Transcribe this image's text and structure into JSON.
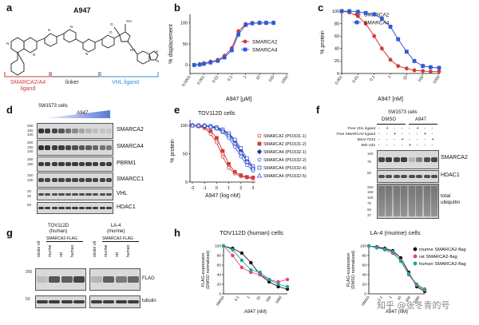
{
  "panel_a": {
    "label": "a",
    "compound": "A947",
    "left_ligand": "SMARCA2/A4\nligand",
    "linker": "linker",
    "vhl_ligand": "VHL ligand",
    "colors": {
      "left": "#d23a3a",
      "vhl": "#2f8fd6"
    }
  },
  "panel_b": {
    "label": "b"
  },
  "panel_c": {
    "label": "c"
  },
  "panel_d": {
    "label": "d",
    "cells": "SW1573 cells",
    "compound": "A947",
    "rows": [
      "SMARCA2",
      "SMARCA4",
      "PBRM1",
      "SMARCC1",
      "VHL",
      "HDAC1"
    ],
    "mw": [
      [
        "250",
        "150",
        "100"
      ],
      [
        "250",
        "150",
        "100"
      ],
      [
        "250",
        "150"
      ],
      [
        "150",
        "100"
      ],
      [
        "25",
        "20"
      ],
      [
        "50"
      ]
    ]
  },
  "panel_e": {
    "label": "e",
    "title": "TOV112D cells"
  },
  "panel_f": {
    "label": "f",
    "cells": "SW1573 cells",
    "groups": [
      "DMSO",
      "A947"
    ],
    "treatments": [
      "Free VHL ligand",
      "Free SMARCA2 ligand",
      "MLN-7243",
      "MG-132"
    ],
    "signs": [
      [
        "-",
        "+",
        "-",
        "-",
        "-",
        "+",
        "-",
        "-"
      ],
      [
        "-",
        "-",
        "+",
        "-",
        "-",
        "-",
        "+",
        "-"
      ],
      [
        "-",
        "-",
        "-",
        "+",
        "-",
        "-",
        "-",
        "+"
      ],
      [
        "-",
        "-",
        "-",
        "-",
        "+",
        "-",
        "-",
        "-"
      ]
    ],
    "rows": [
      "SMARCA2",
      "HDAC1",
      "total\nubiquitin"
    ],
    "mw": [
      "150",
      "75",
      "50",
      "250",
      "150",
      "100",
      "75",
      "50",
      "37"
    ]
  },
  "panel_g": {
    "label": "g",
    "left_title": "TOV112D\n(human)",
    "right_title": "LA-4\n(murine)",
    "construct": "SMARCA2-FLAG",
    "lanes": [
      "vector ctl",
      "murine",
      "rat",
      "human"
    ],
    "rows": [
      "FLAG",
      "tubulin"
    ],
    "mw": [
      "250",
      "50"
    ]
  },
  "panel_h": {
    "label": "h"
  },
  "watermark": "知乎 @张冬青的号",
  "chart_data": [
    {
      "id": "b",
      "type": "line",
      "xlabel": "A947 [µM]",
      "ylabel": "% displacement",
      "x_ticks": [
        "0.0001",
        "0.001",
        "0.01",
        "0.1",
        "1",
        "10",
        "100",
        "1000"
      ],
      "x_log_range": [
        -4,
        3
      ],
      "ylim": [
        -20,
        120
      ],
      "y_ticks": [
        0,
        50,
        100
      ],
      "legend_position": "right",
      "series": [
        {
          "name": "SMARCA2",
          "color": "#d23a3a",
          "marker": "circle",
          "x": [
            0.0002,
            0.0005,
            0.001,
            0.003,
            0.01,
            0.03,
            0.1,
            0.3,
            1,
            3,
            10,
            30,
            100
          ],
          "y": [
            0,
            2,
            4,
            8,
            12,
            22,
            40,
            80,
            97,
            99,
            100,
            100,
            100
          ]
        },
        {
          "name": "SMARCA4",
          "color": "#2f5bd6",
          "marker": "square",
          "x": [
            0.0002,
            0.0005,
            0.001,
            0.003,
            0.01,
            0.03,
            0.1,
            0.3,
            1,
            3,
            10,
            30,
            100
          ],
          "y": [
            0,
            1,
            3,
            6,
            10,
            18,
            35,
            72,
            95,
            99,
            100,
            100,
            100
          ]
        }
      ]
    },
    {
      "id": "c",
      "type": "line",
      "xlabel": "A947 [nM]",
      "ylabel": "% protein",
      "x_ticks": [
        "0.001",
        "0.01",
        "0.1",
        "1",
        "10",
        "100",
        "1000"
      ],
      "x_log_range": [
        -3,
        3
      ],
      "ylim": [
        0,
        100
      ],
      "y_ticks": [
        0,
        20,
        40,
        60,
        80,
        100
      ],
      "legend_position": "top-right",
      "series": [
        {
          "name": "SMARCA2",
          "color": "#d23a3a",
          "marker": "circle",
          "x": [
            0.001,
            0.003,
            0.01,
            0.03,
            0.1,
            0.3,
            1,
            3,
            10,
            30,
            100,
            300,
            1000
          ],
          "y": [
            100,
            98,
            92,
            80,
            60,
            40,
            22,
            12,
            8,
            5,
            4,
            3,
            3
          ]
        },
        {
          "name": "SMARCA4",
          "color": "#2f5bd6",
          "marker": "square",
          "x": [
            0.001,
            0.003,
            0.01,
            0.03,
            0.1,
            0.3,
            1,
            3,
            10,
            30,
            100,
            300,
            1000
          ],
          "y": [
            100,
            100,
            99,
            97,
            95,
            88,
            75,
            55,
            35,
            20,
            12,
            10,
            9
          ]
        }
      ]
    },
    {
      "id": "e",
      "type": "line",
      "title": "TOV112D cells",
      "xlabel": "A947 (log nM)",
      "ylabel": "% protein",
      "x_ticks": [
        "-2",
        "-1",
        "0",
        "1",
        "2",
        "3"
      ],
      "xlim": [
        -2.2,
        3.2
      ],
      "ylim": [
        0,
        110
      ],
      "y_ticks": [
        0,
        50,
        100
      ],
      "legend_position": "right",
      "series": [
        {
          "name": "SMARCA2 (P51531-1)",
          "color": "#d23a3a",
          "marker": "circle-open",
          "x": [
            -2,
            -1.5,
            -1,
            -0.5,
            0,
            0.5,
            1,
            1.5,
            2,
            2.5,
            3
          ],
          "y": [
            100,
            98,
            95,
            85,
            70,
            45,
            25,
            15,
            10,
            8,
            6
          ]
        },
        {
          "name": "SMARCA2 (P51531-2)",
          "color": "#d23a3a",
          "marker": "square",
          "x": [
            -2,
            -1.5,
            -1,
            -0.5,
            0,
            0.5,
            1,
            1.5,
            2,
            2.5,
            3
          ],
          "y": [
            100,
            99,
            97,
            90,
            78,
            55,
            32,
            18,
            12,
            9,
            8
          ]
        },
        {
          "name": "SMARCA4 (P51532-1)",
          "color": "#1f2fa8",
          "marker": "diamond",
          "x": [
            -2,
            -1.5,
            -1,
            -0.5,
            0,
            0.5,
            1,
            1.5,
            2,
            2.5,
            3
          ],
          "y": [
            100,
            100,
            99,
            98,
            96,
            92,
            85,
            72,
            55,
            38,
            25
          ]
        },
        {
          "name": "SMARCA4 (P51532-2)",
          "color": "#3b5bd6",
          "marker": "circle-open",
          "x": [
            -2,
            -1.5,
            -1,
            -0.5,
            0,
            0.5,
            1,
            1.5,
            2,
            2.5,
            3
          ],
          "y": [
            100,
            100,
            99,
            97,
            94,
            88,
            78,
            62,
            45,
            30,
            20
          ]
        },
        {
          "name": "SMARCA4 (P51532-4)",
          "color": "#3b5bd6",
          "marker": "square-open",
          "x": [
            -2,
            -1.5,
            -1,
            -0.5,
            0,
            0.5,
            1,
            1.5,
            2,
            2.5,
            3
          ],
          "y": [
            100,
            100,
            100,
            99,
            97,
            93,
            86,
            75,
            60,
            42,
            28
          ]
        },
        {
          "name": "SMARCA4 (P51532-5)",
          "color": "#3b5bd6",
          "marker": "triangle-open",
          "x": [
            -2,
            -1.5,
            -1,
            -0.5,
            0,
            0.5,
            1,
            1.5,
            2,
            2.5,
            3
          ],
          "y": [
            100,
            100,
            100,
            98,
            95,
            90,
            82,
            68,
            52,
            36,
            24
          ]
        }
      ]
    },
    {
      "id": "h-left",
      "type": "line",
      "title": "TOV112D (human) cells",
      "xlabel": "A947 (nM)",
      "ylabel": "FLAG-expression\n(DMSO normalized)",
      "x_ticks": [
        "DMSO",
        "0.1",
        "1",
        "10",
        "100",
        "1000"
      ],
      "ylim": [
        0,
        100
      ],
      "y_ticks": [
        0,
        20,
        40,
        60,
        80,
        100
      ],
      "series": [
        {
          "name": "murine SMARCA2-flag",
          "color": "#111111",
          "x": [
            0,
            1,
            2,
            3,
            4,
            5,
            6,
            7
          ],
          "y": [
            100,
            95,
            85,
            65,
            40,
            25,
            15,
            10
          ]
        },
        {
          "name": "rat SMARCA2-flag",
          "color": "#e0457b",
          "x": [
            0,
            1,
            2,
            3,
            4,
            5,
            6,
            7
          ],
          "y": [
            100,
            80,
            55,
            45,
            40,
            30,
            25,
            30
          ]
        },
        {
          "name": "human SMARCA2-flag",
          "color": "#1aa59a",
          "x": [
            0,
            1,
            2,
            3,
            4,
            5,
            6,
            7
          ],
          "y": [
            100,
            92,
            70,
            50,
            45,
            30,
            20,
            15
          ]
        }
      ]
    },
    {
      "id": "h-right",
      "type": "line",
      "title": "LA-4 (murine) cells",
      "xlabel": "A947 (nM)",
      "ylabel": "FLAG-expression\n(DMSO normalized)",
      "x_ticks": [
        "DMSO",
        "0.1",
        "1",
        "10",
        "100",
        "1000"
      ],
      "ylim": [
        0,
        100
      ],
      "y_ticks": [
        0,
        20,
        40,
        60,
        80,
        100
      ],
      "legend_position": "top-right",
      "series": [
        {
          "name": "murine SMARCA2-flag",
          "color": "#111111",
          "x": [
            0,
            1,
            2,
            3,
            4,
            5,
            6,
            7
          ],
          "y": [
            100,
            98,
            95,
            90,
            75,
            45,
            15,
            5
          ]
        },
        {
          "name": "rat SMARCA2-flag",
          "color": "#e0457b",
          "x": [
            0,
            1,
            2,
            3,
            4,
            5,
            6,
            7
          ],
          "y": [
            100,
            97,
            92,
            85,
            70,
            40,
            18,
            8
          ]
        },
        {
          "name": "human SMARCA2-flag",
          "color": "#1aa59a",
          "x": [
            0,
            1,
            2,
            3,
            4,
            5,
            6,
            7
          ],
          "y": [
            100,
            96,
            93,
            88,
            68,
            42,
            20,
            10
          ]
        }
      ]
    }
  ]
}
